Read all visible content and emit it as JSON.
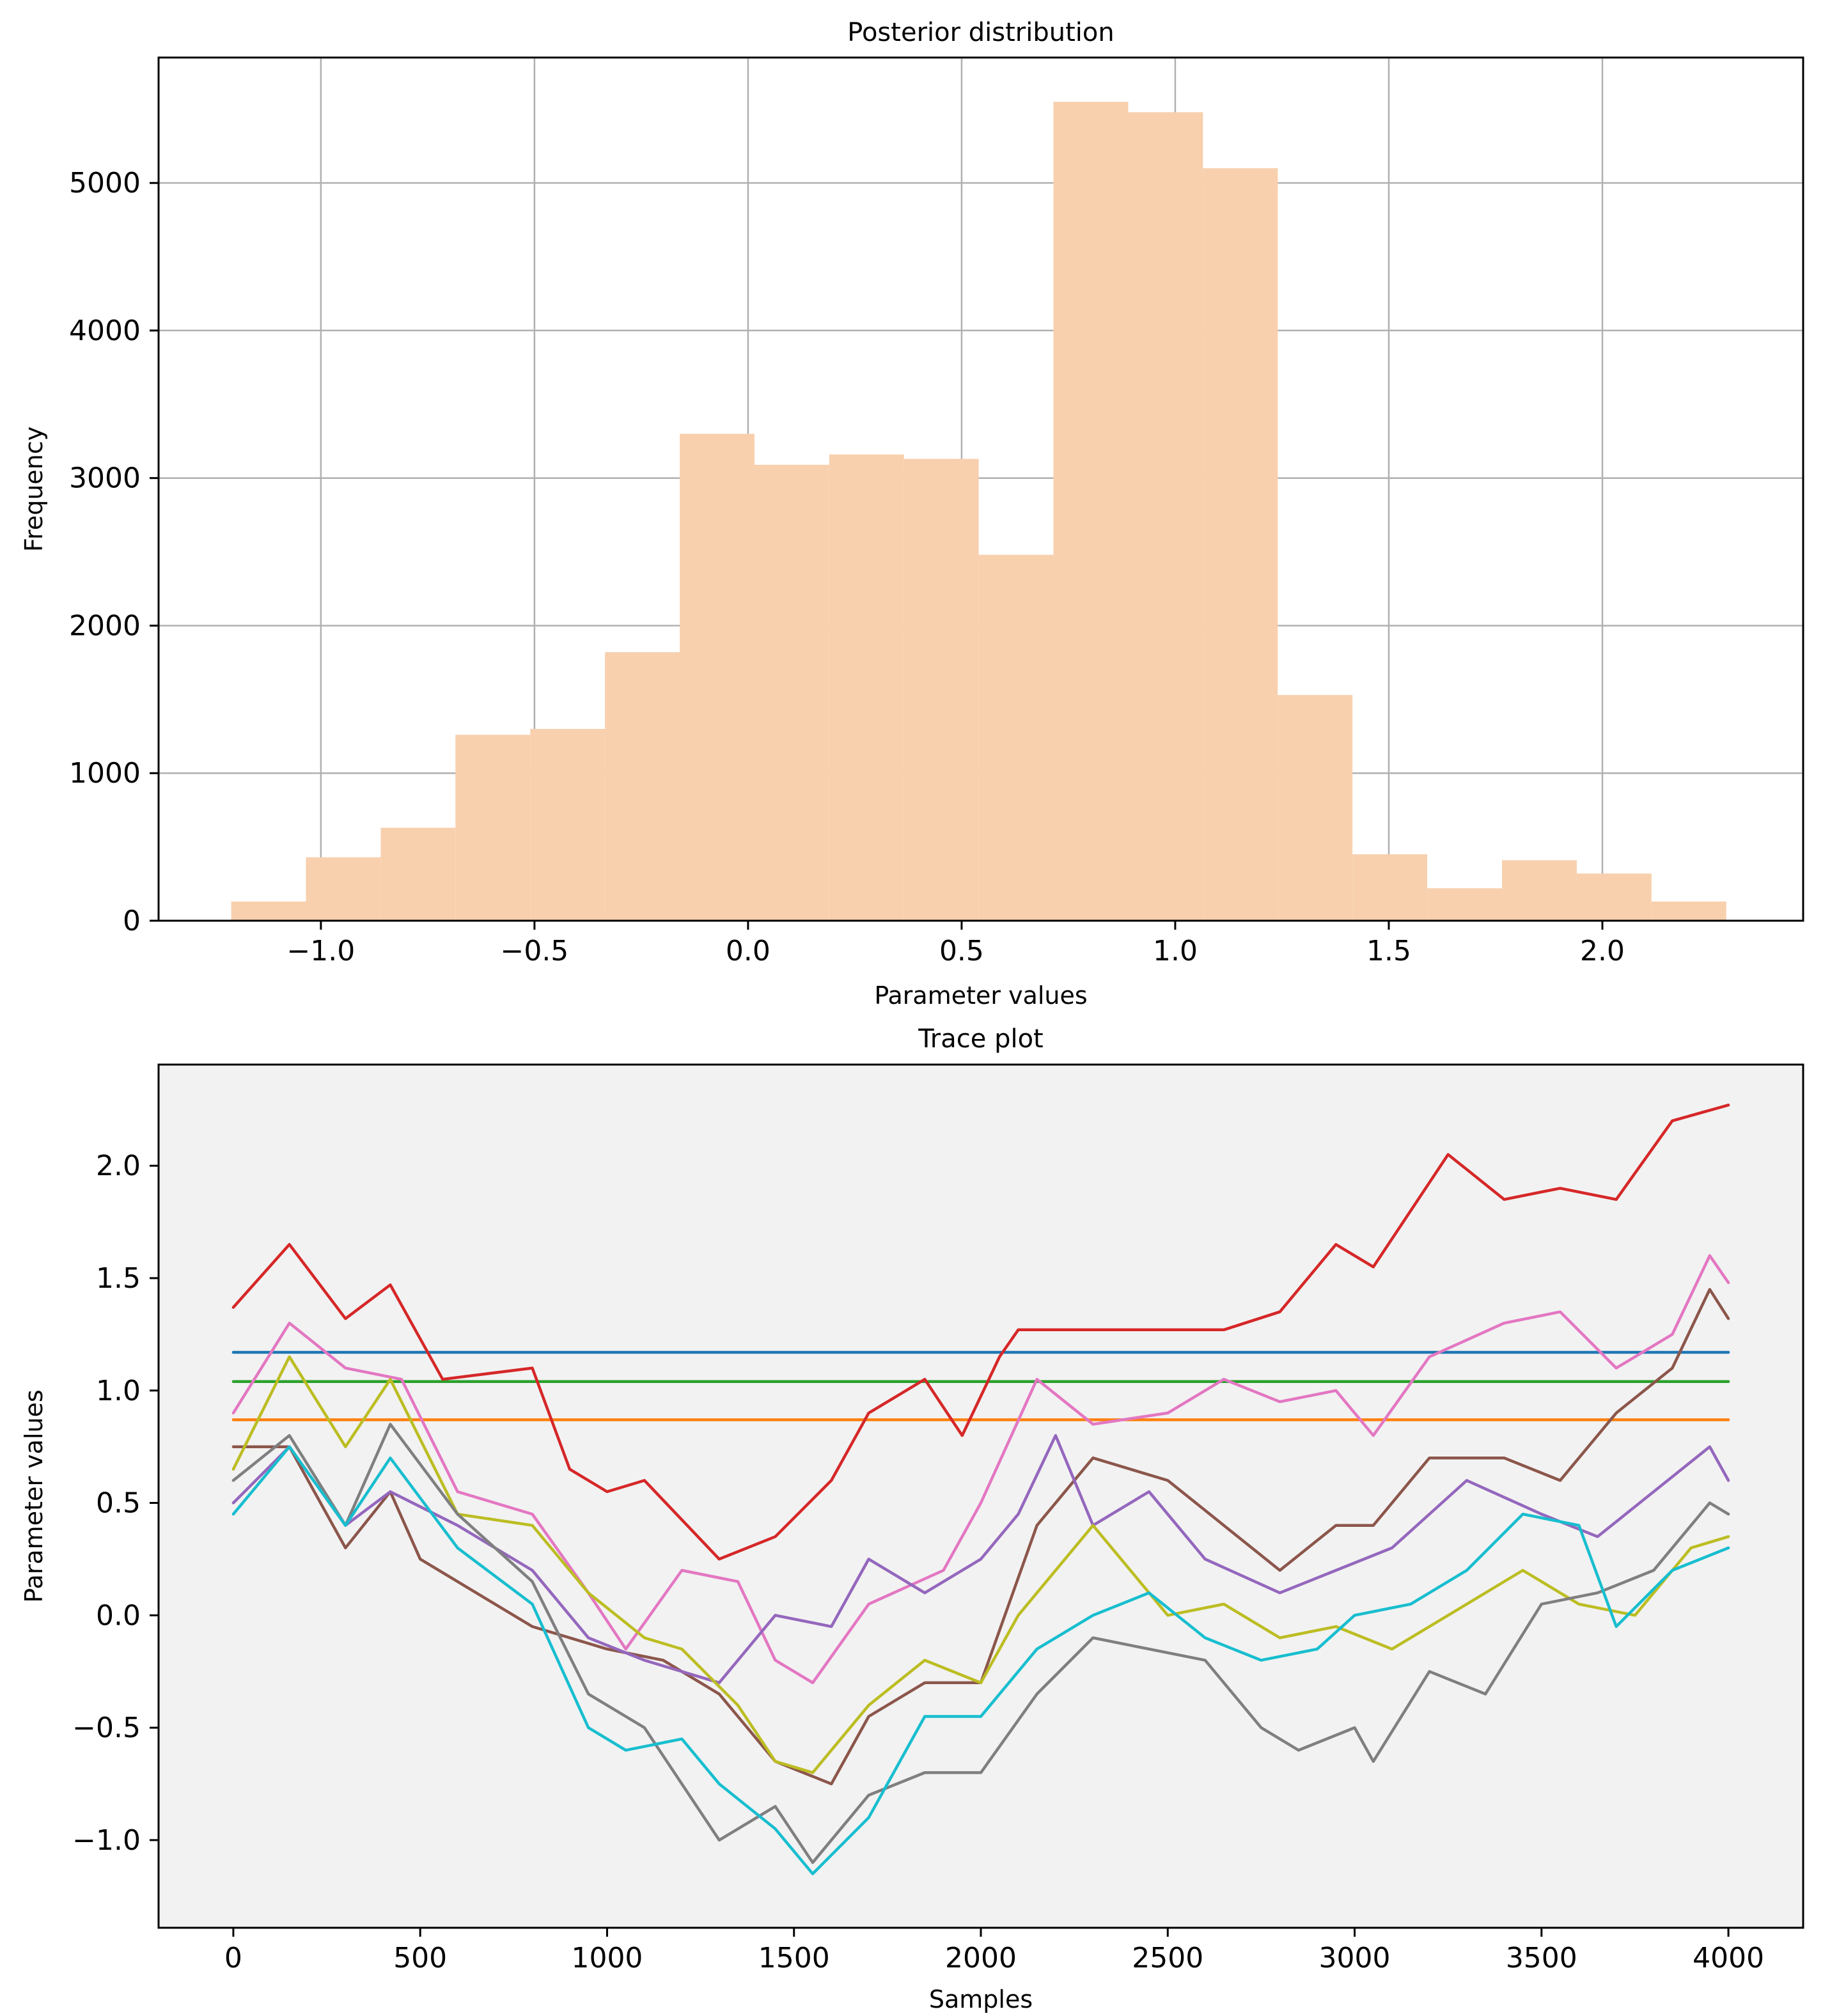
{
  "chart_data": [
    {
      "type": "bar",
      "title": "Posterior distribution",
      "xlabel": "Parameter values",
      "ylabel": "Frequency",
      "bar_color": "#f8d0ae",
      "xlim": [
        -1.38,
        2.47
      ],
      "ylim": [
        0,
        5850
      ],
      "xticks": [
        -1.0,
        -0.5,
        0.0,
        0.5,
        1.0,
        1.5,
        2.0
      ],
      "xtick_labels": [
        "−1.0",
        "−0.5",
        "0.0",
        "0.5",
        "1.0",
        "1.5",
        "2.0"
      ],
      "yticks": [
        0,
        1000,
        2000,
        3000,
        4000,
        5000
      ],
      "ytick_labels": [
        "0",
        "1000",
        "2000",
        "3000",
        "4000",
        "5000"
      ],
      "grid": true,
      "bins": [
        {
          "x0": -1.21,
          "x1": -1.035,
          "count": 130
        },
        {
          "x0": -1.035,
          "x1": -0.86,
          "count": 430
        },
        {
          "x0": -0.86,
          "x1": -0.685,
          "count": 630
        },
        {
          "x0": -0.685,
          "x1": -0.51,
          "count": 1260
        },
        {
          "x0": -0.51,
          "x1": -0.335,
          "count": 1300
        },
        {
          "x0": -0.335,
          "x1": -0.16,
          "count": 1820
        },
        {
          "x0": -0.16,
          "x1": 0.015,
          "count": 3300
        },
        {
          "x0": 0.015,
          "x1": 0.19,
          "count": 3090
        },
        {
          "x0": 0.19,
          "x1": 0.365,
          "count": 3160
        },
        {
          "x0": 0.365,
          "x1": 0.54,
          "count": 3130
        },
        {
          "x0": 0.54,
          "x1": 0.715,
          "count": 2480
        },
        {
          "x0": 0.715,
          "x1": 0.89,
          "count": 5550
        },
        {
          "x0": 0.89,
          "x1": 1.065,
          "count": 5480
        },
        {
          "x0": 1.065,
          "x1": 1.24,
          "count": 5100
        },
        {
          "x0": 1.24,
          "x1": 1.415,
          "count": 1530
        },
        {
          "x0": 1.415,
          "x1": 1.59,
          "count": 450
        },
        {
          "x0": 1.59,
          "x1": 1.765,
          "count": 220
        },
        {
          "x0": 1.765,
          "x1": 1.94,
          "count": 410
        },
        {
          "x0": 1.94,
          "x1": 2.115,
          "count": 320
        },
        {
          "x0": 2.115,
          "x1": 2.29,
          "count": 130
        }
      ]
    },
    {
      "type": "line",
      "title": "Trace plot",
      "xlabel": "Samples",
      "ylabel": "Parameter values",
      "background": "#f2f2f2",
      "xlim": [
        -200,
        4200
      ],
      "ylim": [
        -1.39,
        2.45
      ],
      "xticks": [
        0,
        500,
        1000,
        1500,
        2000,
        2500,
        3000,
        3500,
        4000
      ],
      "xtick_labels": [
        "0",
        "500",
        "1000",
        "1500",
        "2000",
        "2500",
        "3000",
        "3500",
        "4000"
      ],
      "yticks": [
        -1.0,
        -0.5,
        0.0,
        0.5,
        1.0,
        1.5,
        2.0
      ],
      "ytick_labels": [
        "−1.0",
        "−0.5",
        "0.0",
        "0.5",
        "1.0",
        "1.5",
        "2.0"
      ],
      "grid": false,
      "series": [
        {
          "color": "#1f77b4",
          "x": [
            0,
            4000
          ],
          "y": [
            1.17,
            1.17
          ]
        },
        {
          "color": "#2ca02c",
          "x": [
            0,
            4000
          ],
          "y": [
            1.04,
            1.04
          ]
        },
        {
          "color": "#ff7f0e",
          "x": [
            0,
            4000
          ],
          "y": [
            0.87,
            0.87
          ]
        },
        {
          "color": "#d62728",
          "x": [
            0,
            150,
            300,
            420,
            560,
            800,
            900,
            1000,
            1100,
            1300,
            1450,
            1600,
            1700,
            1850,
            1950,
            2050,
            2100,
            2650,
            2800,
            2950,
            3050,
            3250,
            3400,
            3550,
            3700,
            3850,
            4000
          ],
          "y": [
            1.37,
            1.65,
            1.32,
            1.47,
            1.05,
            1.1,
            0.65,
            0.55,
            0.6,
            0.25,
            0.35,
            0.6,
            0.9,
            1.05,
            0.8,
            1.15,
            1.27,
            1.27,
            1.35,
            1.65,
            1.55,
            2.05,
            1.85,
            1.9,
            1.85,
            2.2,
            2.27
          ]
        },
        {
          "color": "#e377c2",
          "x": [
            0,
            150,
            300,
            450,
            600,
            800,
            950,
            1050,
            1200,
            1350,
            1450,
            1550,
            1700,
            1900,
            2000,
            2150,
            2300,
            2500,
            2650,
            2800,
            2950,
            3050,
            3200,
            3400,
            3550,
            3700,
            3850,
            3950,
            4000
          ],
          "y": [
            0.9,
            1.3,
            1.1,
            1.05,
            0.55,
            0.45,
            0.1,
            -0.15,
            0.2,
            0.15,
            -0.2,
            -0.3,
            0.05,
            0.2,
            0.5,
            1.05,
            0.85,
            0.9,
            1.05,
            0.95,
            1.0,
            0.8,
            1.15,
            1.3,
            1.35,
            1.1,
            1.25,
            1.6,
            1.48
          ]
        },
        {
          "color": "#8c564b",
          "x": [
            0,
            150,
            300,
            420,
            500,
            600,
            800,
            1000,
            1150,
            1300,
            1450,
            1600,
            1700,
            1850,
            2000,
            2150,
            2300,
            2500,
            2650,
            2800,
            2950,
            3050,
            3200,
            3400,
            3550,
            3700,
            3850,
            3950,
            4000
          ],
          "y": [
            0.75,
            0.75,
            0.3,
            0.55,
            0.25,
            0.15,
            -0.05,
            -0.15,
            -0.2,
            -0.35,
            -0.65,
            -0.75,
            -0.45,
            -0.3,
            -0.3,
            0.4,
            0.7,
            0.6,
            0.4,
            0.2,
            0.4,
            0.4,
            0.7,
            0.7,
            0.6,
            0.9,
            1.1,
            1.45,
            1.32
          ]
        },
        {
          "color": "#9467bd",
          "x": [
            0,
            150,
            300,
            420,
            600,
            800,
            950,
            1100,
            1300,
            1450,
            1600,
            1700,
            1850,
            2000,
            2100,
            2200,
            2300,
            2450,
            2600,
            2800,
            2950,
            3100,
            3300,
            3500,
            3650,
            3800,
            3950,
            4000
          ],
          "y": [
            0.5,
            0.75,
            0.4,
            0.55,
            0.4,
            0.2,
            -0.1,
            -0.2,
            -0.3,
            0.0,
            -0.05,
            0.25,
            0.1,
            0.25,
            0.45,
            0.8,
            0.4,
            0.55,
            0.25,
            0.1,
            0.2,
            0.3,
            0.6,
            0.45,
            0.35,
            0.55,
            0.75,
            0.6
          ]
        },
        {
          "color": "#bcbd22",
          "x": [
            0,
            150,
            300,
            420,
            600,
            800,
            950,
            1100,
            1200,
            1350,
            1450,
            1550,
            1700,
            1850,
            2000,
            2100,
            2200,
            2300,
            2500,
            2650,
            2800,
            2950,
            3100,
            3300,
            3450,
            3600,
            3750,
            3900,
            4000
          ],
          "y": [
            0.65,
            1.15,
            0.75,
            1.05,
            0.45,
            0.4,
            0.1,
            -0.1,
            -0.15,
            -0.4,
            -0.65,
            -0.7,
            -0.4,
            -0.2,
            -0.3,
            0.0,
            0.2,
            0.4,
            0.0,
            0.05,
            -0.1,
            -0.05,
            -0.15,
            0.05,
            0.2,
            0.05,
            0.0,
            0.3,
            0.35
          ]
        },
        {
          "color": "#7f7f7f",
          "x": [
            0,
            150,
            300,
            420,
            600,
            800,
            950,
            1100,
            1300,
            1450,
            1550,
            1700,
            1850,
            2000,
            2150,
            2300,
            2450,
            2600,
            2750,
            2850,
            3000,
            3050,
            3200,
            3350,
            3500,
            3650,
            3800,
            3950,
            4000
          ],
          "y": [
            0.6,
            0.8,
            0.4,
            0.85,
            0.45,
            0.15,
            -0.35,
            -0.5,
            -1.0,
            -0.85,
            -1.1,
            -0.8,
            -0.7,
            -0.7,
            -0.35,
            -0.1,
            -0.15,
            -0.2,
            -0.5,
            -0.6,
            -0.5,
            -0.65,
            -0.25,
            -0.35,
            0.05,
            0.1,
            0.2,
            0.5,
            0.45
          ]
        },
        {
          "color": "#17becf",
          "x": [
            0,
            150,
            300,
            420,
            600,
            800,
            950,
            1050,
            1200,
            1300,
            1450,
            1550,
            1700,
            1850,
            2000,
            2150,
            2300,
            2450,
            2600,
            2750,
            2900,
            3000,
            3150,
            3300,
            3450,
            3600,
            3700,
            3850,
            4000
          ],
          "y": [
            0.45,
            0.75,
            0.4,
            0.7,
            0.3,
            0.05,
            -0.5,
            -0.6,
            -0.55,
            -0.75,
            -0.95,
            -1.15,
            -0.9,
            -0.45,
            -0.45,
            -0.15,
            0.0,
            0.1,
            -0.1,
            -0.2,
            -0.15,
            0.0,
            0.05,
            0.2,
            0.45,
            0.4,
            -0.05,
            0.2,
            0.3
          ]
        }
      ]
    }
  ]
}
